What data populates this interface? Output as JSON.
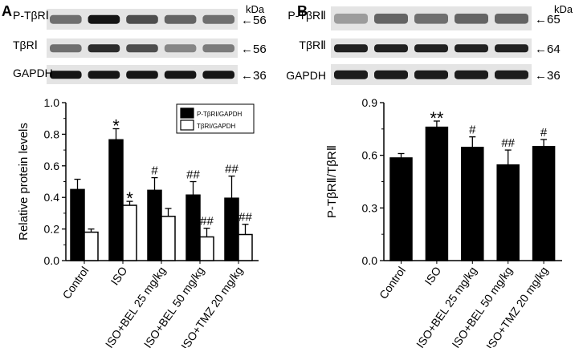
{
  "panels": [
    {
      "label": "A",
      "kda_label": "kDa",
      "blot_rows": [
        {
          "name": "P-TβRⅠ",
          "kda": "←56",
          "intensity": [
            0.55,
            0.95,
            0.7,
            0.6,
            0.55
          ]
        },
        {
          "name": "TβRⅠ",
          "kda": "←56",
          "intensity": [
            0.55,
            0.85,
            0.7,
            0.45,
            0.5
          ]
        },
        {
          "name": "GAPDH",
          "kda": "←36",
          "intensity": [
            0.95,
            0.95,
            0.95,
            0.95,
            0.95
          ]
        }
      ]
    },
    {
      "label": "B",
      "kda_label": "kDa",
      "blot_rows": [
        {
          "name": "P-TβRⅡ",
          "kda": "←65",
          "intensity": [
            0.35,
            0.6,
            0.55,
            0.6,
            0.6
          ]
        },
        {
          "name": "TβRⅡ",
          "kda": "←64",
          "intensity": [
            0.9,
            0.9,
            0.9,
            0.9,
            0.9
          ]
        },
        {
          "name": "GAPDH",
          "kda": "←36",
          "intensity": [
            0.92,
            0.92,
            0.92,
            0.92,
            0.92
          ]
        }
      ]
    }
  ],
  "chart_data": [
    {
      "type": "bar",
      "categories": [
        "Control",
        "ISO",
        "ISO+BEL 25 mg/kg",
        "ISO+BEL 50 mg/kg",
        "ISO+TMZ 20 mg/kg"
      ],
      "series": [
        {
          "name": "P-TβRⅠ/GAPDH",
          "color": "#000000",
          "values": [
            0.45,
            0.765,
            0.445,
            0.415,
            0.395
          ],
          "errors": [
            0.065,
            0.07,
            0.08,
            0.085,
            0.14
          ],
          "annotations": [
            "",
            "*",
            "#",
            "##",
            "##"
          ]
        },
        {
          "name": "TβRⅠ/GAPDH",
          "color": "#ffffff",
          "values": [
            0.18,
            0.35,
            0.28,
            0.15,
            0.165
          ],
          "errors": [
            0.02,
            0.025,
            0.05,
            0.055,
            0.065
          ],
          "annotations": [
            "",
            "*",
            "",
            "##",
            "##"
          ]
        }
      ],
      "ylabel": "Relative protein levels",
      "ylim": [
        0,
        1.0
      ],
      "yticks": [
        "0.0",
        "0.2",
        "0.4",
        "0.6",
        "0.8",
        "1.0"
      ],
      "legend": "top-right"
    },
    {
      "type": "bar",
      "categories": [
        "Control",
        "ISO",
        "ISO+BEL 25 mg/kg",
        "ISO+BEL 50 mg/kg",
        "ISO+TMZ 20 mg/kg"
      ],
      "series": [
        {
          "color": "#000000",
          "values": [
            0.585,
            0.76,
            0.645,
            0.545,
            0.65
          ],
          "errors": [
            0.025,
            0.035,
            0.06,
            0.085,
            0.04
          ],
          "annotations": [
            "",
            "**",
            "#",
            "##",
            "#"
          ]
        }
      ],
      "ylabel": "P-TβRⅡ/TβRⅡ",
      "ylim": [
        0,
        0.9
      ],
      "yticks": [
        "0.0",
        "0.3",
        "0.6",
        "0.9"
      ]
    }
  ]
}
